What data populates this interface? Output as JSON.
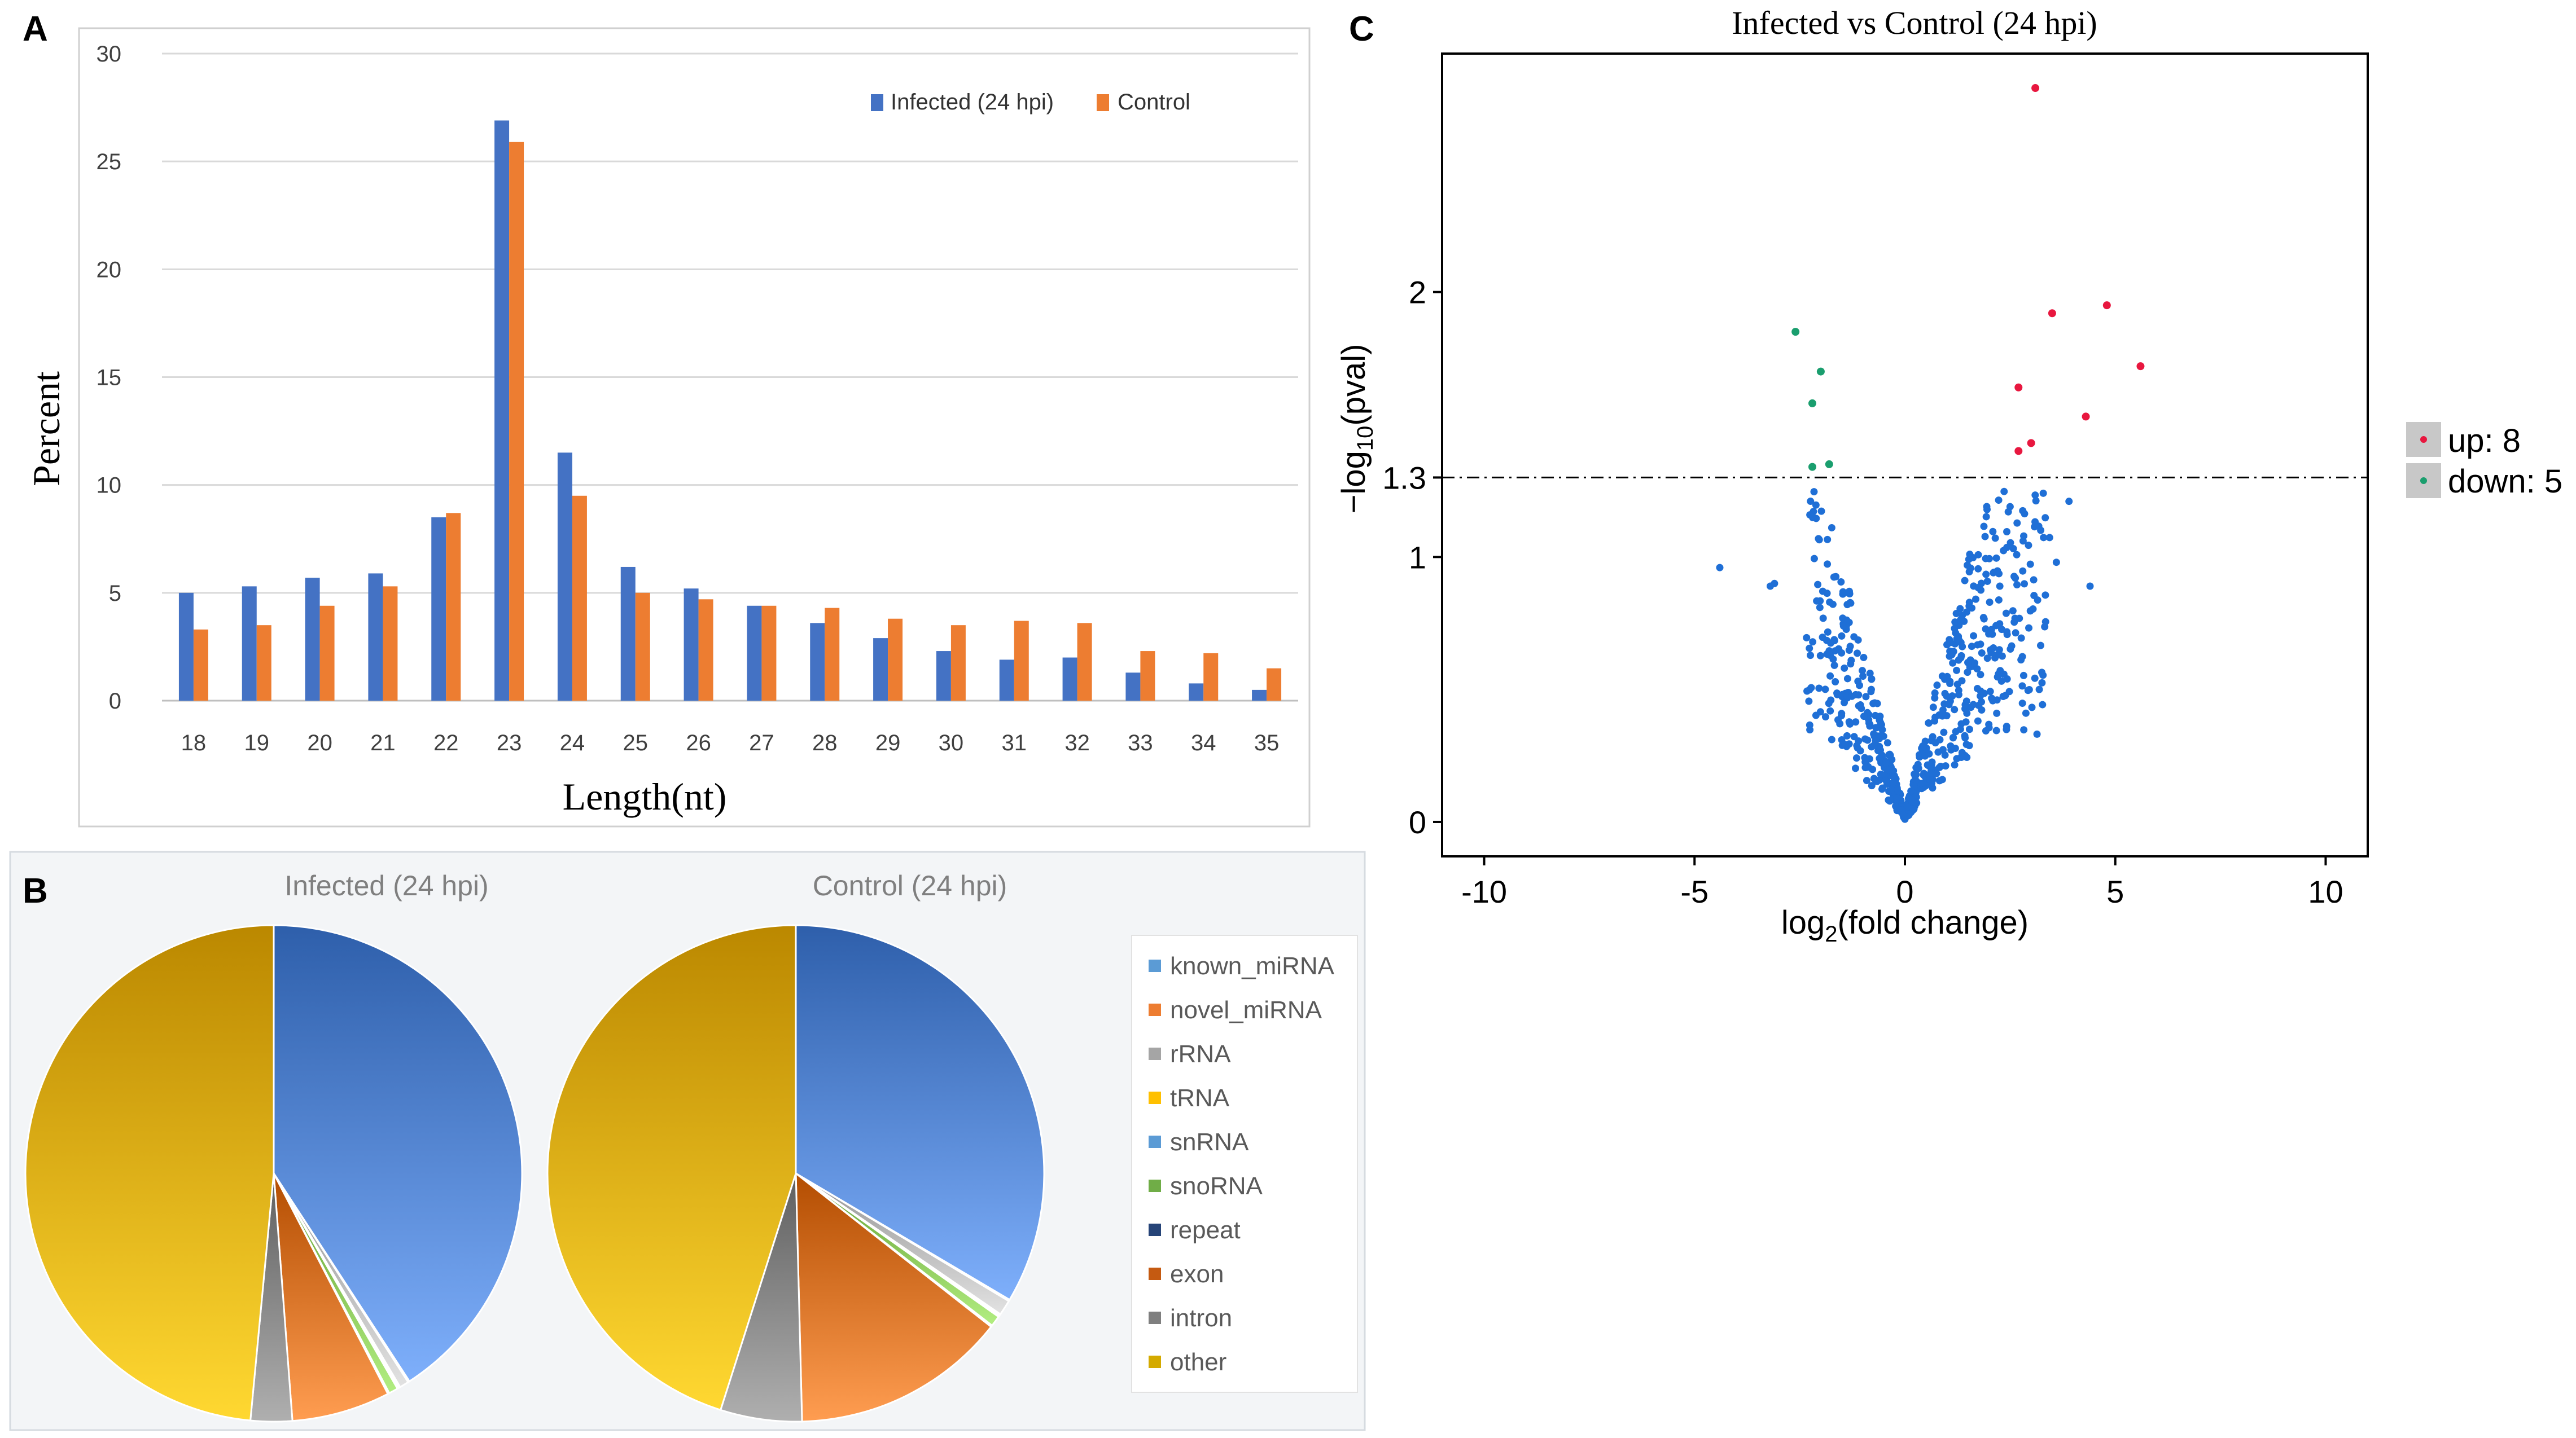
{
  "colors": {
    "infected": "#4472C4",
    "control": "#ED7D31",
    "up": "#E8173F",
    "down": "#1A9E6E",
    "ns": "#1F6FD6"
  },
  "panel_labels": {
    "a": "A",
    "b": "B",
    "c": "C"
  },
  "chart_data": [
    {
      "type": "bar",
      "title": "",
      "xlabel": "Length(nt)",
      "ylabel": "Percent",
      "ylim": [
        0,
        30
      ],
      "yticks": [
        "0",
        "5",
        "10",
        "15",
        "20",
        "25",
        "30"
      ],
      "grid": true,
      "legend_position": "top-right",
      "categories": [
        "18",
        "19",
        "20",
        "21",
        "22",
        "23",
        "24",
        "25",
        "26",
        "27",
        "28",
        "29",
        "30",
        "31",
        "32",
        "33",
        "34",
        "35"
      ],
      "series": [
        {
          "name": "Infected (24 hpi)",
          "values": [
            5.0,
            5.3,
            5.7,
            5.9,
            8.5,
            26.9,
            11.5,
            6.2,
            5.2,
            4.4,
            3.6,
            2.9,
            2.3,
            1.9,
            2.0,
            1.3,
            0.8,
            0.5
          ]
        },
        {
          "name": "Control",
          "values": [
            3.3,
            3.5,
            4.4,
            5.3,
            8.7,
            25.9,
            9.5,
            5.0,
            4.7,
            4.4,
            4.3,
            3.8,
            3.5,
            3.7,
            3.6,
            2.3,
            2.2,
            1.5
          ]
        }
      ]
    },
    {
      "type": "pie",
      "legend": [
        {
          "label": "known_miRNA",
          "color": "#5B9BD5"
        },
        {
          "label": "novel_miRNA",
          "color": "#ED7D31"
        },
        {
          "label": "rRNA",
          "color": "#A5A5A5"
        },
        {
          "label": "tRNA",
          "color": "#FFC000"
        },
        {
          "label": "snRNA",
          "color": "#5B9BD5"
        },
        {
          "label": "snoRNA",
          "color": "#70AD47"
        },
        {
          "label": "repeat",
          "color": "#264478"
        },
        {
          "label": "exon",
          "color": "#C55A11"
        },
        {
          "label": "intron",
          "color": "#7F7F7F"
        },
        {
          "label": "other",
          "color": "#D4AA00"
        }
      ],
      "pies": [
        {
          "title": "Infected (24 hpi)",
          "slices": [
            {
              "label": "known_miRNA",
              "value": 40.8,
              "color": "#5B8CD8"
            },
            {
              "label": "novel_miRNA",
              "value": 0.1,
              "color": "#ED7D31"
            },
            {
              "label": "rRNA",
              "value": 0.6,
              "color": "#BFBFBF"
            },
            {
              "label": "tRNA",
              "value": 0.1,
              "color": "#FFC000"
            },
            {
              "label": "snRNA",
              "value": 0.1,
              "color": "#5B9BD5"
            },
            {
              "label": "snoRNA",
              "value": 0.6,
              "color": "#8FCB5E"
            },
            {
              "label": "repeat",
              "value": 0.1,
              "color": "#264478"
            },
            {
              "label": "exon",
              "value": 6.4,
              "color": "#E07A2E"
            },
            {
              "label": "intron",
              "value": 2.7,
              "color": "#8C8C8C"
            },
            {
              "label": "other",
              "value": 48.5,
              "color": "#E8B50E"
            }
          ]
        },
        {
          "title": "Control (24 hpi)",
          "slices": [
            {
              "label": "known_miRNA",
              "value": 33.5,
              "color": "#5B8CD8"
            },
            {
              "label": "novel_miRNA",
              "value": 0.1,
              "color": "#ED7D31"
            },
            {
              "label": "rRNA",
              "value": 1.0,
              "color": "#BFBFBF"
            },
            {
              "label": "tRNA",
              "value": 0.1,
              "color": "#FFC000"
            },
            {
              "label": "snRNA",
              "value": 0.1,
              "color": "#5B9BD5"
            },
            {
              "label": "snoRNA",
              "value": 0.7,
              "color": "#8FCB5E"
            },
            {
              "label": "repeat",
              "value": 0.1,
              "color": "#264478"
            },
            {
              "label": "exon",
              "value": 14.0,
              "color": "#E07A2E"
            },
            {
              "label": "intron",
              "value": 5.3,
              "color": "#8C8C8C"
            },
            {
              "label": "other",
              "value": 45.1,
              "color": "#E8B50E"
            }
          ]
        }
      ]
    },
    {
      "type": "scatter",
      "title": "Infected vs Control (24 hpi)",
      "xlabel": "log",
      "xlabel_sub": "2",
      "xlabel_tail": "(fold change)",
      "ylabel": "−log",
      "ylabel_sub": "10",
      "ylabel_tail": "(pval)",
      "xlim": [
        -11,
        11
      ],
      "ylim": [
        -0.13,
        2.9
      ],
      "xticks": [
        "-10",
        "-5",
        "0",
        "5",
        "10"
      ],
      "yticks": [
        "0",
        "1",
        "1.3",
        "2"
      ],
      "threshold": 1.3,
      "legend": [
        {
          "label": "up: 8",
          "color": "#E8173F"
        },
        {
          "label": "down: 5",
          "color": "#1A9E6E"
        }
      ],
      "up": [
        [
          3.1,
          2.77
        ],
        [
          4.8,
          1.95
        ],
        [
          3.5,
          1.92
        ],
        [
          5.6,
          1.72
        ],
        [
          2.7,
          1.64
        ],
        [
          4.3,
          1.53
        ],
        [
          3.0,
          1.43
        ],
        [
          2.7,
          1.4
        ]
      ],
      "down": [
        [
          -2.6,
          1.85
        ],
        [
          -2.0,
          1.7
        ],
        [
          -2.2,
          1.58
        ],
        [
          -1.8,
          1.35
        ],
        [
          -2.2,
          1.34
        ]
      ]
    }
  ]
}
